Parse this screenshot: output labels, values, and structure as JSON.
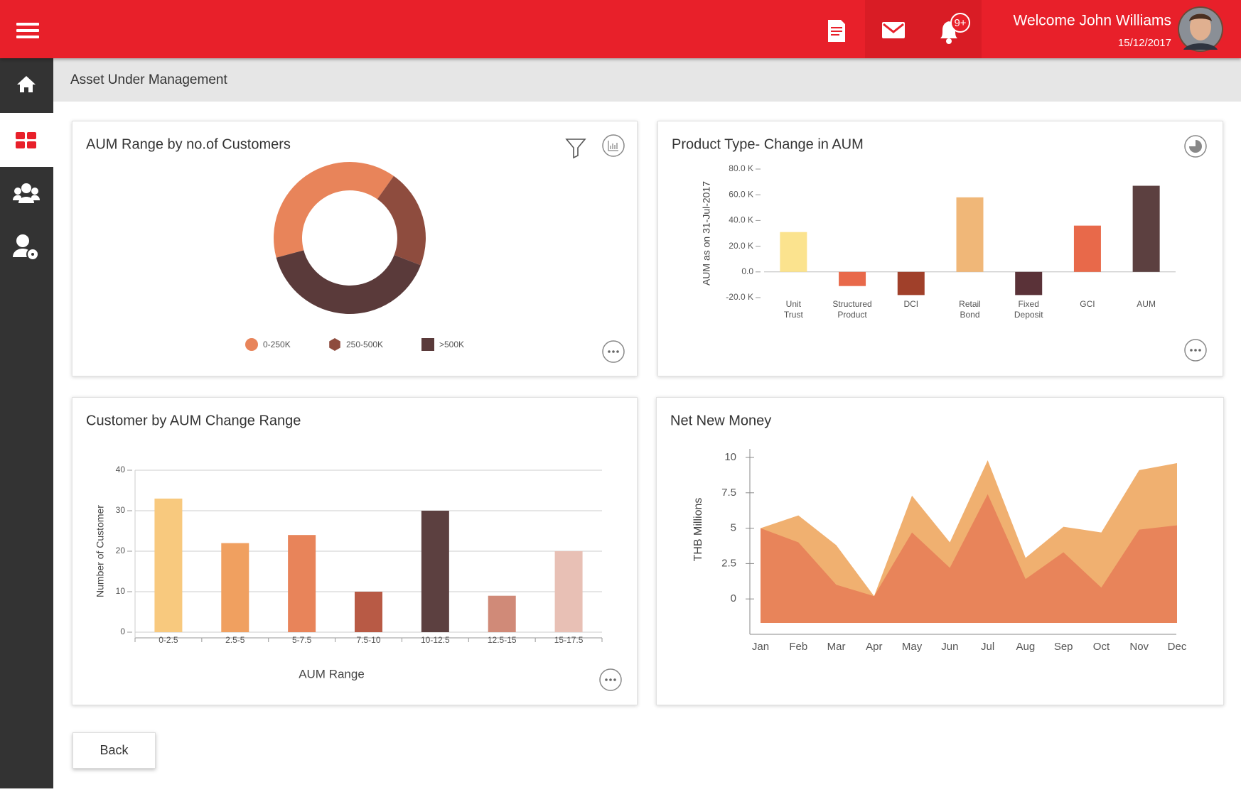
{
  "header": {
    "welcome": "Welcome John Williams",
    "date": "15/12/2017",
    "notification_badge": "9+"
  },
  "page_title": "Asset Under Management",
  "chart_data": [
    {
      "type": "donut",
      "title": "AUM Range by no.of Customers",
      "categories": [
        "0-250K",
        "250-500K",
        ">500K"
      ],
      "values": [
        39,
        21,
        40
      ],
      "colors": [
        "#E8845A",
        "#8E4C3E",
        "#5A3A3A"
      ]
    },
    {
      "type": "bar",
      "title": "Product Type- Change in AUM",
      "y_label": "AUM as on 31-Jul-2017",
      "categories": [
        "Unit Trust",
        "Structured Product",
        "DCI",
        "Retail Bond",
        "Fixed Deposit",
        "GCI",
        "AUM"
      ],
      "values": [
        31000,
        -11000,
        -18000,
        58000,
        -18000,
        36000,
        67000
      ],
      "colors": [
        "#FBE38E",
        "#E8694A",
        "#A0402A",
        "#F0B778",
        "#5A3238",
        "#E8694A",
        "#5C4040"
      ],
      "ylim": [
        -20000,
        80000
      ],
      "yticks": [
        {
          "value": -20000,
          "label": "-20.0 K"
        },
        {
          "value": 0,
          "label": "0.0"
        },
        {
          "value": 20000,
          "label": "20.0 K"
        },
        {
          "value": 40000,
          "label": "40.0 K"
        },
        {
          "value": 60000,
          "label": "60.0 K"
        },
        {
          "value": 80000,
          "label": "80.0 K"
        }
      ],
      "grid": false
    },
    {
      "type": "bar",
      "title": "Customer by AUM Change Range",
      "x_label": "AUM Range",
      "y_label": "Number of Customer",
      "categories": [
        "0-2.5",
        "2.5-5",
        "5-7.5",
        "7.5-10",
        "10-12.5",
        "12.5-15",
        "15-17.5"
      ],
      "values": [
        33,
        22,
        24,
        10,
        30,
        9,
        20
      ],
      "colors": [
        "#F8C97E",
        "#F0A060",
        "#E8845A",
        "#B85A45",
        "#5C4040",
        "#D08A78",
        "#E8C0B5"
      ],
      "ylim": [
        0,
        40
      ],
      "yticks": [
        0,
        10,
        20,
        30,
        40
      ],
      "grid": true
    },
    {
      "type": "area",
      "title": "Net New Money",
      "y_label": "THB Millions",
      "categories": [
        "Jan",
        "Feb",
        "Mar",
        "Apr",
        "May",
        "Jun",
        "Jul",
        "Aug",
        "Sep",
        "Oct",
        "Nov",
        "Dec"
      ],
      "series": [
        {
          "color": "#F0B070",
          "values": [
            5.0,
            5.9,
            3.8,
            0.2,
            7.3,
            4.0,
            9.8,
            2.9,
            5.1,
            4.7,
            9.1,
            9.6
          ]
        },
        {
          "color": "#E8845A",
          "values": [
            5.0,
            4.0,
            1.0,
            0.2,
            4.7,
            2.2,
            7.4,
            1.4,
            3.3,
            0.8,
            4.9,
            5.2
          ]
        }
      ],
      "ylim": [
        -2.5,
        10.3
      ],
      "yticks": [
        0,
        2.5,
        5,
        7.5,
        10
      ],
      "grid": false
    }
  ],
  "back_button": "Back"
}
